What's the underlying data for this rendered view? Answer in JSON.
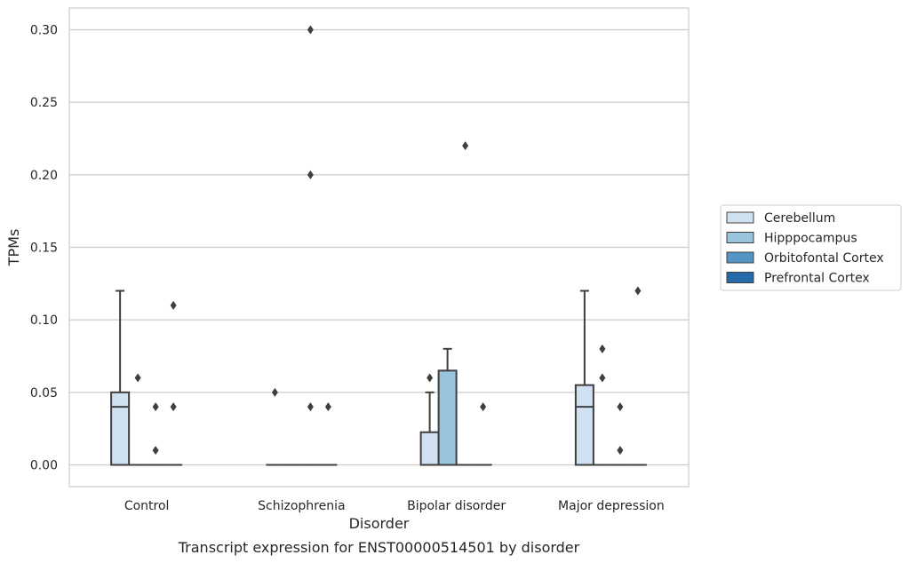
{
  "chart_data": {
    "type": "box",
    "caption": "Transcript expression for ENST00000514501 by disorder",
    "xlabel": "Disorder",
    "ylabel": "TPMs",
    "ylim": [
      -0.015,
      0.315
    ],
    "yticks": [
      0.0,
      0.05,
      0.1,
      0.15,
      0.2,
      0.25,
      0.3
    ],
    "ytick_labels": [
      "0.00",
      "0.05",
      "0.10",
      "0.15",
      "0.20",
      "0.25",
      "0.30"
    ],
    "grid": "horizontal",
    "legend_position": "right",
    "categories": [
      "Control",
      "Schizophrenia",
      "Bipolar disorder",
      "Major depression"
    ],
    "series": [
      {
        "name": "Cerebellum",
        "color": "#d0e1f2"
      },
      {
        "name": "Hipppocampus",
        "color": "#99c4dd"
      },
      {
        "name": "Orbitofontal Cortex",
        "color": "#5396c6"
      },
      {
        "name": "Prefrontal Cortex",
        "color": "#276aa9"
      }
    ],
    "boxes": [
      [
        {
          "q1": 0,
          "median": 0.04,
          "q3": 0.05,
          "whisker_low": 0,
          "whisker_high": 0.12,
          "outliers": []
        },
        {
          "q1": 0,
          "median": 0,
          "q3": 0,
          "whisker_low": 0,
          "whisker_high": 0,
          "outliers": [
            0.06
          ]
        },
        {
          "q1": 0,
          "median": 0,
          "q3": 0,
          "whisker_low": 0,
          "whisker_high": 0,
          "outliers": [
            0.01,
            0.04
          ]
        },
        {
          "q1": 0,
          "median": 0,
          "q3": 0,
          "whisker_low": 0,
          "whisker_high": 0,
          "outliers": [
            0.04,
            0.11
          ]
        }
      ],
      [
        {
          "q1": 0,
          "median": 0,
          "q3": 0,
          "whisker_low": 0,
          "whisker_high": 0,
          "outliers": [
            0.05
          ]
        },
        {
          "q1": 0,
          "median": 0,
          "q3": 0,
          "whisker_low": 0,
          "whisker_high": 0,
          "outliers": []
        },
        {
          "q1": 0,
          "median": 0,
          "q3": 0,
          "whisker_low": 0,
          "whisker_high": 0,
          "outliers": [
            0.04,
            0.2,
            0.3
          ]
        },
        {
          "q1": 0,
          "median": 0,
          "q3": 0,
          "whisker_low": 0,
          "whisker_high": 0,
          "outliers": [
            0.04
          ]
        }
      ],
      [
        {
          "q1": 0,
          "median": 0,
          "q3": 0.0225,
          "whisker_low": 0,
          "whisker_high": 0.05,
          "outliers": [
            0.06
          ]
        },
        {
          "q1": 0,
          "median": 0,
          "q3": 0.065,
          "whisker_low": 0,
          "whisker_high": 0.08,
          "outliers": []
        },
        {
          "q1": 0,
          "median": 0,
          "q3": 0,
          "whisker_low": 0,
          "whisker_high": 0,
          "outliers": [
            0.22
          ]
        },
        {
          "q1": 0,
          "median": 0,
          "q3": 0,
          "whisker_low": 0,
          "whisker_high": 0,
          "outliers": [
            0.04
          ]
        }
      ],
      [
        {
          "q1": 0,
          "median": 0.04,
          "q3": 0.055,
          "whisker_low": 0,
          "whisker_high": 0.12,
          "outliers": []
        },
        {
          "q1": 0,
          "median": 0,
          "q3": 0,
          "whisker_low": 0,
          "whisker_high": 0,
          "outliers": [
            0.06,
            0.08
          ]
        },
        {
          "q1": 0,
          "median": 0,
          "q3": 0,
          "whisker_low": 0,
          "whisker_high": 0,
          "outliers": [
            0.01,
            0.04
          ]
        },
        {
          "q1": 0,
          "median": 0,
          "q3": 0,
          "whisker_low": 0,
          "whisker_high": 0,
          "outliers": [
            0.12
          ]
        }
      ]
    ]
  }
}
